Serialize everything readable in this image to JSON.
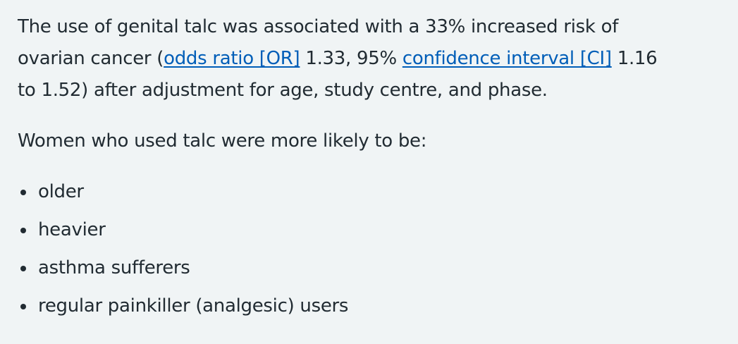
{
  "paragraph_1": {
    "segments": [
      {
        "text": "The use of genital talc was associated with a 33% increased risk of ovarian cancer ("
      },
      {
        "link": "odds ratio [OR]"
      },
      {
        "text": " 1.33, 95% "
      },
      {
        "link": "confidence interval [CI]"
      },
      {
        "text": " 1.16 to 1.52) after adjustment for age, study centre, and phase."
      }
    ]
  },
  "paragraph_2": "Women who used talc were more likely to be:",
  "list": [
    "older",
    "heavier",
    "asthma sufferers",
    "regular painkiller (analgesic) users"
  ]
}
